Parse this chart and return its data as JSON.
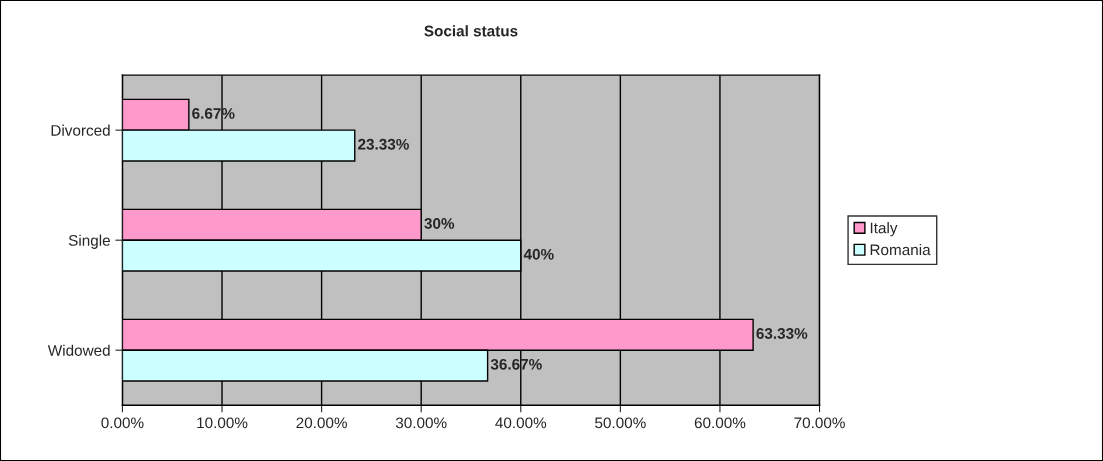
{
  "chart_data": {
    "type": "bar",
    "orientation": "horizontal",
    "title": "Social status",
    "categories": [
      "Divorced",
      "Single",
      "Widowed"
    ],
    "series": [
      {
        "name": "Italy",
        "color": "#ff99cc",
        "values": [
          6.67,
          30,
          63.33
        ],
        "value_labels": [
          "6.67%",
          "30%",
          "63.33%"
        ]
      },
      {
        "name": "Romania",
        "color": "#ccffff",
        "values": [
          23.33,
          40,
          36.67
        ],
        "value_labels": [
          "23.33%",
          "40%",
          "36.67%"
        ]
      }
    ],
    "xlim": [
      0,
      70
    ],
    "xticks": [
      {
        "value": 0,
        "label": "0.00%"
      },
      {
        "value": 10,
        "label": "10.00%"
      },
      {
        "value": 20,
        "label": "20.00%"
      },
      {
        "value": 30,
        "label": "30.00%"
      },
      {
        "value": 40,
        "label": "40.00%"
      },
      {
        "value": 50,
        "label": "50.00%"
      },
      {
        "value": 60,
        "label": "60.00%"
      },
      {
        "value": 70,
        "label": "70.00%"
      }
    ],
    "grid": "x",
    "legend": "right"
  }
}
